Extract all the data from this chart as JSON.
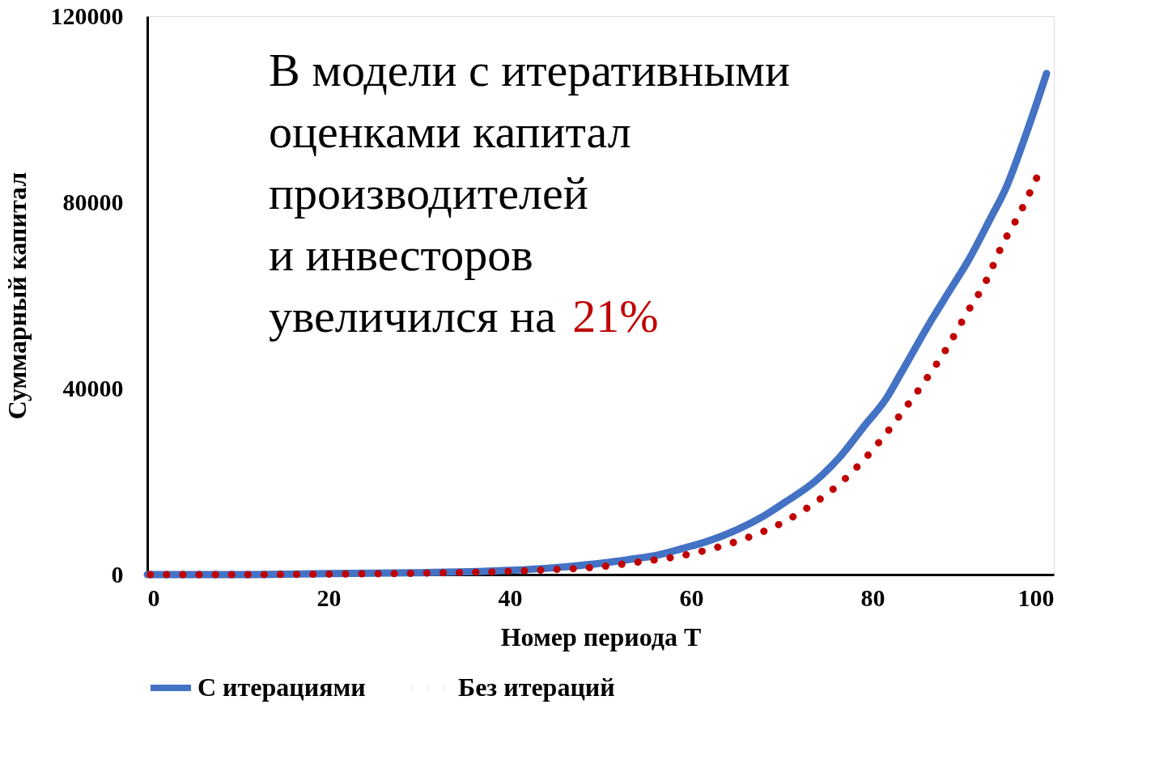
{
  "chart_data": {
    "type": "line",
    "xlabel": "Номер периода T",
    "ylabel": "Суммарный капитал",
    "annotations": [
      "В модели с итеративными\nоценками  капитал\nпроизводителей\nи инвесторов\nувеличился на",
      "21%"
    ],
    "series": [
      {
        "name": "С итерациями",
        "color": "#4472c4",
        "line_style": "solid",
        "x": [
          0,
          10,
          20,
          30,
          40,
          45,
          49.5,
          53,
          56.3,
          59,
          61.7,
          65,
          68,
          70.4,
          73.7,
          76.5,
          79.2,
          81.5,
          83.2,
          86.5,
          88.5,
          90.6,
          93,
          94.7,
          97,
          99.2
        ],
        "values": [
          0,
          0,
          200,
          400,
          900,
          1500,
          2300,
          3200,
          4200,
          5600,
          7100,
          9600,
          12600,
          15600,
          20100,
          25500,
          32200,
          37800,
          43500,
          54700,
          61000,
          67600,
          76500,
          83000,
          95000,
          107700
        ]
      },
      {
        "name": "Без итераций",
        "color": "#c00000",
        "line_style": "dotted",
        "x": [
          0,
          10,
          20,
          30,
          40,
          45,
          49.5,
          53.8,
          57.9,
          62,
          66,
          69.8,
          73.4,
          76.7,
          81,
          83.5,
          86,
          88.3,
          90.4,
          92.5,
          94.3,
          96.2,
          98.1
        ],
        "values": [
          0,
          0,
          100,
          300,
          700,
          1100,
          1600,
          2600,
          3700,
          5400,
          7800,
          10900,
          15100,
          20100,
          29100,
          35500,
          42200,
          49000,
          56200,
          63000,
          70800,
          77500,
          85200
        ]
      }
    ],
    "xlim": [
      0,
      100
    ],
    "xticks": [
      0,
      20,
      40,
      60,
      80,
      100
    ],
    "ylim": [
      0,
      120000
    ],
    "yticks": [
      0,
      {
        "value": 40000,
        "label": "40000"
      },
      {
        "value": 80000,
        "label": "80000"
      },
      {
        "value": 120000,
        "label": "120000"
      }
    ],
    "grid": false,
    "legend": "bottom",
    "marker": "none"
  }
}
